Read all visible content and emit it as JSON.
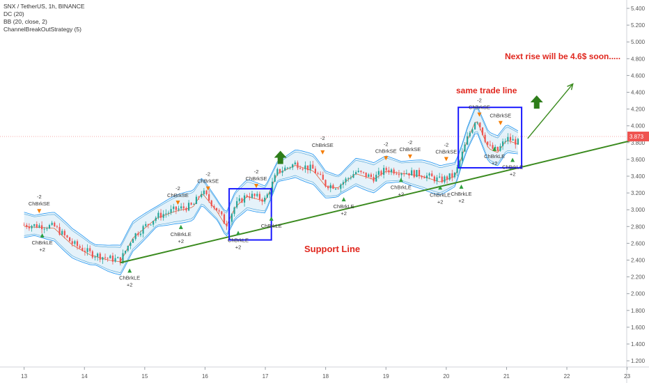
{
  "legend": {
    "symbol": "SNX / TetherUS, 1h, BINANCE",
    "dc": "DC (20)",
    "bb": "BB (20, close, 2)",
    "strategy": "ChannelBreakOutStrategy (5)"
  },
  "annotations": {
    "next_rise": "Next rise will be 4.6$ soon.....",
    "same_trade_line": "same trade line",
    "support_line": "Support Line"
  },
  "colors": {
    "up": "#26a69a",
    "down": "#ef5350",
    "band": "#2196f3",
    "box": "#1a1aff",
    "support": "#3a8a1e",
    "arrow_green": "#2e7d1a",
    "price_tag": "#ef5350",
    "annotation_text": "#e0261d"
  },
  "chart_data": {
    "type": "candlestick",
    "ylim": [
      1.1,
      5.5
    ],
    "y_ticks": [
      "5.400",
      "5.200",
      "5.000",
      "4.800",
      "4.600",
      "4.400",
      "4.200",
      "4.000",
      "3.800",
      "3.600",
      "3.400",
      "3.200",
      "3.000",
      "2.800",
      "2.600",
      "2.400",
      "2.200",
      "2.000",
      "1.800",
      "1.600",
      "1.400",
      "1.200"
    ],
    "x_ticks": [
      "13",
      "14",
      "15",
      "16",
      "17",
      "18",
      "19",
      "20",
      "21",
      "22",
      "23"
    ],
    "last_price": "3.873",
    "price_path": [
      [
        13.0,
        2.82
      ],
      [
        13.5,
        2.8
      ],
      [
        13.8,
        2.6
      ],
      [
        14.1,
        2.48
      ],
      [
        14.4,
        2.42
      ],
      [
        14.6,
        2.4
      ],
      [
        14.8,
        2.68
      ],
      [
        15.2,
        2.92
      ],
      [
        15.5,
        3.0
      ],
      [
        15.8,
        3.05
      ],
      [
        15.95,
        3.22
      ],
      [
        16.2,
        3.0
      ],
      [
        16.35,
        2.82
      ],
      [
        16.5,
        3.05
      ],
      [
        16.7,
        3.18
      ],
      [
        17.0,
        3.12
      ],
      [
        17.2,
        3.45
      ],
      [
        17.5,
        3.55
      ],
      [
        17.8,
        3.48
      ],
      [
        18.0,
        3.3
      ],
      [
        18.2,
        3.28
      ],
      [
        18.5,
        3.45
      ],
      [
        18.8,
        3.38
      ],
      [
        19.0,
        3.48
      ],
      [
        19.3,
        3.45
      ],
      [
        19.6,
        3.42
      ],
      [
        19.9,
        3.35
      ],
      [
        20.15,
        3.42
      ],
      [
        20.35,
        3.85
      ],
      [
        20.5,
        4.1
      ],
      [
        20.7,
        3.75
      ],
      [
        20.85,
        3.7
      ],
      [
        21.0,
        3.85
      ],
      [
        21.2,
        3.8
      ]
    ],
    "support_line": [
      [
        14.6,
        2.37
      ],
      [
        21.2,
        3.5
      ],
      [
        23.1,
        3.83
      ]
    ],
    "projection_arrow": [
      [
        21.35,
        3.85
      ],
      [
        22.1,
        4.5
      ]
    ],
    "highlight_boxes": [
      {
        "x0": 16.4,
        "x1": 17.1,
        "y0": 2.64,
        "y1": 3.25
      },
      {
        "x0": 20.2,
        "x1": 21.25,
        "y0": 3.5,
        "y1": 4.22
      }
    ],
    "signals": [
      {
        "label": "ChBrkSE",
        "qty": "-2",
        "x": 13.25,
        "y": 2.95,
        "side": "short"
      },
      {
        "label": "ChBrkLE",
        "qty": "+2",
        "x": 13.3,
        "y": 2.72,
        "side": "long"
      },
      {
        "label": "ChBrkLE",
        "qty": "+2",
        "x": 14.75,
        "y": 2.3,
        "side": "long"
      },
      {
        "label": "ChBrkSE",
        "qty": "-2",
        "x": 15.55,
        "y": 3.05,
        "side": "short"
      },
      {
        "label": "ChBrkLE",
        "qty": "+2",
        "x": 15.6,
        "y": 2.82,
        "side": "long"
      },
      {
        "label": "ChBrkSE",
        "qty": "-2",
        "x": 16.05,
        "y": 3.22,
        "side": "short"
      },
      {
        "label": "ChBrkLE",
        "qty": "+2",
        "x": 16.55,
        "y": 2.75,
        "side": "long"
      },
      {
        "label": "ChBrkSE",
        "qty": "-2",
        "x": 16.85,
        "y": 3.25,
        "side": "short"
      },
      {
        "label": "ChBrkLE",
        "qty": "",
        "x": 17.1,
        "y": 2.92,
        "side": "long"
      },
      {
        "label": "ChBrkSE",
        "qty": "-2",
        "x": 17.95,
        "y": 3.65,
        "side": "short"
      },
      {
        "label": "ChBrkLE",
        "qty": "+2",
        "x": 18.3,
        "y": 3.15,
        "side": "long"
      },
      {
        "label": "ChBrkSE",
        "qty": "-2",
        "x": 19.0,
        "y": 3.58,
        "side": "short"
      },
      {
        "label": "ChBrkSE",
        "qty": "-2",
        "x": 19.4,
        "y": 3.6,
        "side": "short"
      },
      {
        "label": "ChBrkLE",
        "qty": "+2",
        "x": 19.25,
        "y": 3.38,
        "side": "long"
      },
      {
        "label": "ChBrkSE",
        "qty": "-2",
        "x": 20.0,
        "y": 3.57,
        "side": "short"
      },
      {
        "label": "ChBrkLE",
        "qty": "+2",
        "x": 19.9,
        "y": 3.29,
        "side": "long"
      },
      {
        "label": "ChBrkLE",
        "qty": "+2",
        "x": 20.25,
        "y": 3.3,
        "side": "long"
      },
      {
        "label": "ChBrkSE",
        "qty": "-2",
        "x": 20.55,
        "y": 4.1,
        "side": "short"
      },
      {
        "label": "ChBrkSE",
        "qty": "",
        "x": 20.9,
        "y": 4.0,
        "side": "short"
      },
      {
        "label": "ChBrkLE",
        "qty": "+2",
        "x": 20.8,
        "y": 3.75,
        "side": "long"
      },
      {
        "label": "ChBrkLE",
        "qty": "+2",
        "x": 21.1,
        "y": 3.62,
        "side": "long"
      }
    ],
    "title": "",
    "xlabel": "",
    "ylabel": ""
  }
}
